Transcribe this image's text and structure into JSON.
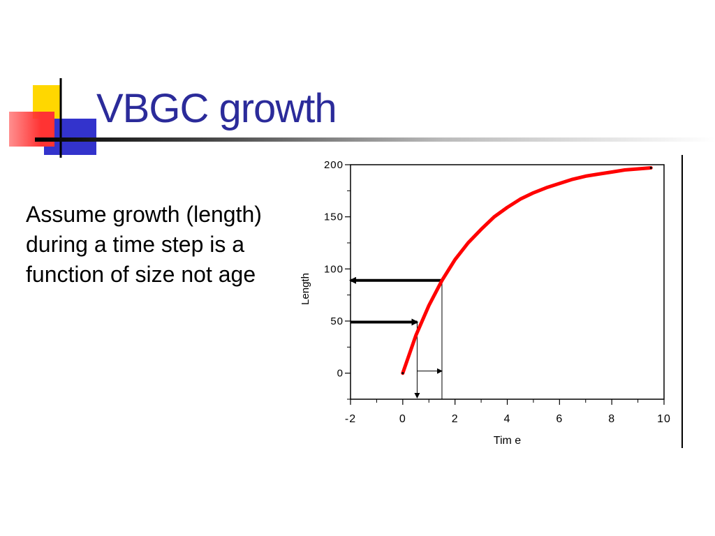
{
  "slide": {
    "title": "VBGC growth",
    "body": "Assume growth (length) during a time step is a function of size not age"
  },
  "colors": {
    "title": "#2b2b9a",
    "curve": "#ff0000",
    "deco_yellow": "#ffd700",
    "deco_blue": "#3333cc",
    "deco_red": "#ff3333"
  },
  "chart_data": {
    "type": "line",
    "title": "",
    "xlabel": "Tim e",
    "ylabel": "Length",
    "xlim": [
      -2,
      10
    ],
    "ylim": [
      -25,
      200
    ],
    "xticks": [
      "-2",
      "0",
      "2",
      "4",
      "6",
      "8",
      "10"
    ],
    "yticks": [
      "0",
      "50",
      "100",
      "150",
      "200"
    ],
    "grid": false,
    "legend": "none",
    "series": [
      {
        "x": [
          0,
          0.5,
          1,
          1.5,
          2,
          2.5,
          3,
          3.5,
          4,
          4.5,
          5,
          5.5,
          6,
          6.5,
          7,
          7.5,
          8,
          8.5,
          9,
          9.5
        ],
        "y": [
          0,
          36,
          65,
          89,
          109,
          125,
          138,
          150,
          159,
          167,
          173,
          178,
          182,
          186,
          189,
          191,
          193,
          195,
          196,
          197
        ]
      }
    ],
    "annotations": [
      {
        "type": "thick-arrow",
        "from": [
          -2,
          49
        ],
        "to": [
          0.55,
          49
        ]
      },
      {
        "type": "thick-arrow",
        "from": [
          1.5,
          89
        ],
        "to": [
          -2,
          89
        ]
      },
      {
        "type": "thin-drop-arrow",
        "from": [
          0.55,
          49
        ],
        "to": [
          0.55,
          -25
        ]
      },
      {
        "type": "thin-drop-line",
        "from": [
          1.5,
          89
        ],
        "to": [
          1.5,
          -25
        ]
      },
      {
        "type": "thin-arrow",
        "from": [
          0.55,
          2
        ],
        "to": [
          1.5,
          2
        ]
      }
    ]
  }
}
